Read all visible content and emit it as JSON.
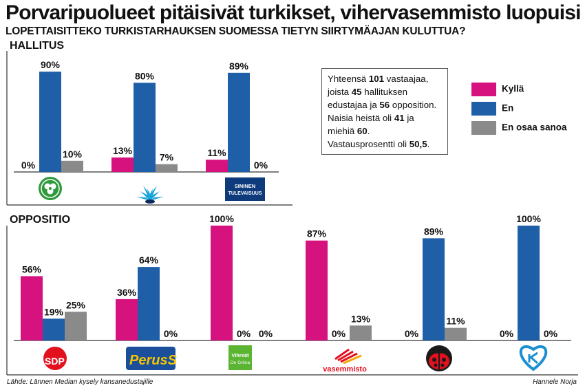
{
  "title": "Porvaripuolueet pitäisivät turkikset, vihervasemmisto luopuisi",
  "subtitle": "LOPETTAISITTEKO TURKISTARHAUKSEN SUOMESSA TIETYN SIIRTYMÄAJAN KULUTTUA?",
  "source": "Lähde: Lännen Median kysely kansanedustajille",
  "credit": "Hannele Norja",
  "info": {
    "t1": "Yhteensä ",
    "n_total": "101",
    "t2": " vastaajaa,",
    "t3": "joista ",
    "n_gov": "45",
    "t4": " hallituksen",
    "t5": "edustajaa ja ",
    "n_opp": "56",
    "t6": " opposition.",
    "t7": "Naisia heistä oli ",
    "n_women": "41",
    "t8": " ja",
    "t9": "miehiä ",
    "n_men": "60",
    "t10": ".",
    "t11": "Vastausprosentti oli ",
    "n_rate": "50,5",
    "t12": "."
  },
  "legend": [
    {
      "label": "Kyllä",
      "color": "#d6127f"
    },
    {
      "label": "En",
      "color": "#1f5fa8"
    },
    {
      "label": "En osaa sanoa",
      "color": "#8a8a8a"
    }
  ],
  "logos": {
    "sdp": "SDP",
    "ps": "PerusS",
    "vihr1": "Vihreät",
    "vihr2": "De Gröna",
    "vas": "vasemmisto",
    "kok1": "SININEN",
    "kok2": "TULEVAISUUS"
  },
  "chart_data": [
    {
      "type": "bar",
      "title": "HALLITUS",
      "categories": [
        "Keskusta",
        "Kokoomus",
        "Sininen tulevaisuus"
      ],
      "ylim": [
        0,
        100
      ],
      "series": [
        {
          "name": "Kyllä",
          "values": [
            0,
            13,
            11
          ]
        },
        {
          "name": "En",
          "values": [
            90,
            80,
            89
          ]
        },
        {
          "name": "En osaa sanoa",
          "values": [
            10,
            7,
            0
          ]
        }
      ]
    },
    {
      "type": "bar",
      "title": "OPPOSITIO",
      "categories": [
        "SDP",
        "Perussuomalaiset",
        "Vihreät",
        "Vasemmistoliitto",
        "RKP",
        "KD"
      ],
      "ylim": [
        0,
        100
      ],
      "series": [
        {
          "name": "Kyllä",
          "values": [
            56,
            36,
            100,
            87,
            0,
            0
          ]
        },
        {
          "name": "En",
          "values": [
            19,
            64,
            0,
            0,
            89,
            100
          ]
        },
        {
          "name": "En osaa sanoa",
          "values": [
            25,
            0,
            0,
            13,
            11,
            0
          ]
        }
      ]
    }
  ]
}
